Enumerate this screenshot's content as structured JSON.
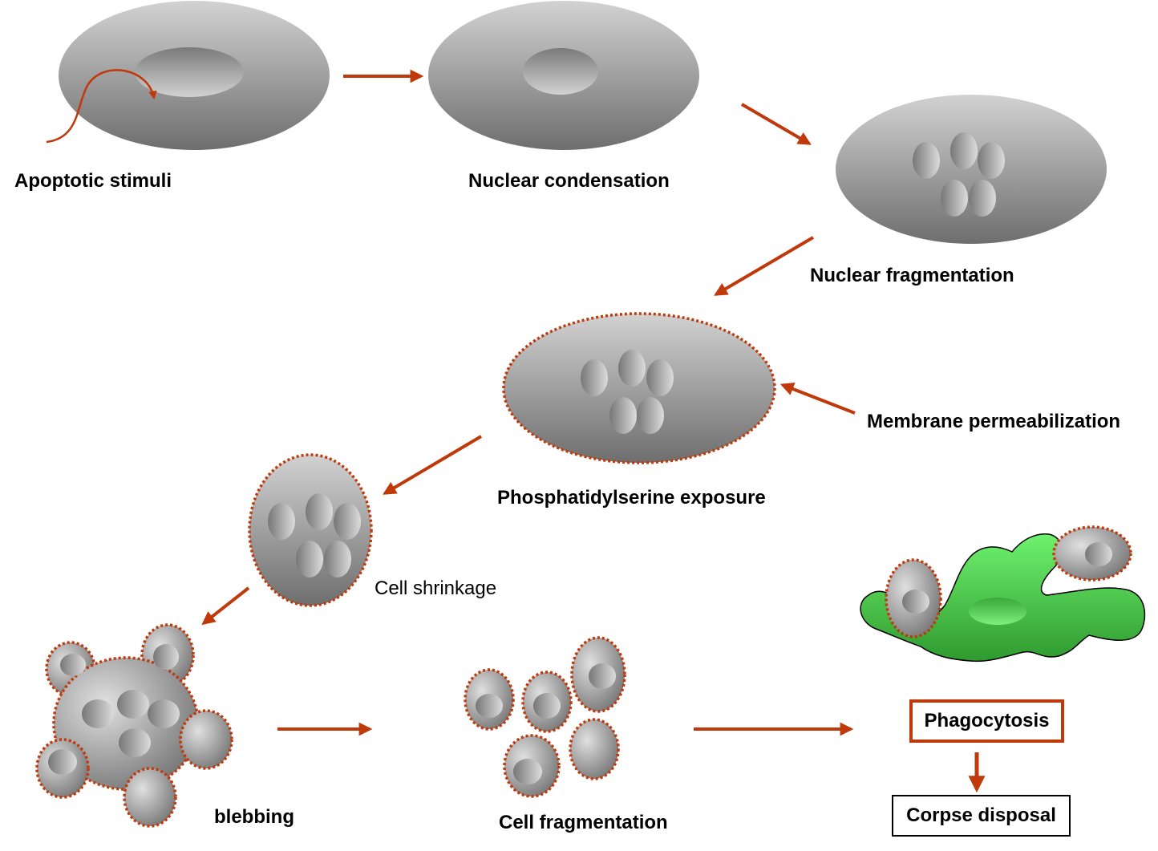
{
  "colors": {
    "arrow": "#c0390b",
    "cell_light": "#d4d4d4",
    "cell_dark": "#6d6d6d",
    "membrane_dots": "#c0390b",
    "phagocyte": "#5ee85e",
    "phagocyte_dark": "#2a8a2a"
  },
  "labels": {
    "apoptotic_stimuli": "Apoptotic stimuli",
    "nuclear_condensation": "Nuclear condensation",
    "nuclear_fragmentation": "Nuclear fragmentation",
    "membrane_permeabilization": "Membrane permeabilization",
    "phosphatidylserine_exposure": "Phosphatidylserine exposure",
    "cell_shrinkage": "Cell shrinkage",
    "blebbing": "blebbing",
    "cell_fragmentation": "Cell fragmentation",
    "phagocytosis": "Phagocytosis",
    "corpse_disposal": "Corpse disposal"
  }
}
